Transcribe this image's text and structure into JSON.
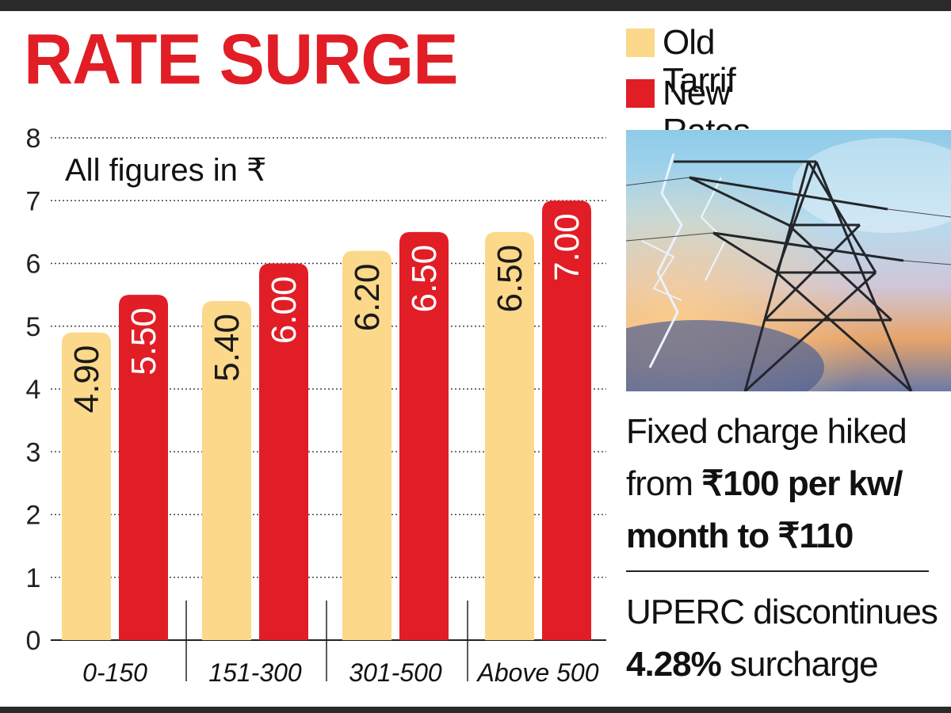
{
  "title": "RATE SURGE",
  "colors": {
    "title": "#e11d26",
    "old": "#fbd88a",
    "new": "#e11d26",
    "grid": "#444444",
    "value_old": "#1a1a1a",
    "value_new": "#ffffff"
  },
  "legend": [
    {
      "label": "Old Tarrif",
      "color": "#fbd88a"
    },
    {
      "label": "New Rates",
      "color": "#e11d26"
    }
  ],
  "chart_data": {
    "type": "bar",
    "subtitle": "All figures in ₹",
    "categories": [
      "0-150",
      "151-300",
      "301-500",
      "Above 500"
    ],
    "series": [
      {
        "name": "Old Tarrif",
        "values": [
          4.9,
          5.4,
          6.2,
          6.5
        ],
        "labels": [
          "4.90",
          "5.40",
          "6.20",
          "6.50"
        ]
      },
      {
        "name": "New Rates",
        "values": [
          5.5,
          6.0,
          6.5,
          7.0
        ],
        "labels": [
          "5.50",
          "6.00",
          "6.50",
          "7.00"
        ]
      }
    ],
    "yticks": [
      "0",
      "1",
      "2",
      "3",
      "4",
      "5",
      "6",
      "7",
      "8"
    ],
    "ylim": [
      0,
      8
    ],
    "grid": true,
    "xlabel": "",
    "ylabel": ""
  },
  "photo": {
    "icon": "power-tower-lightning-icon"
  },
  "notes": {
    "fixed_charge": {
      "line1": "Fixed charge hiked",
      "from_prefix": "from ",
      "from_amount": "₹100 per kw/",
      "month_to": "month to ",
      "to_amount": "₹110"
    },
    "surcharge": {
      "line1": "UPERC discontinues",
      "pct": "4.28%",
      "rest": " surcharge"
    }
  }
}
